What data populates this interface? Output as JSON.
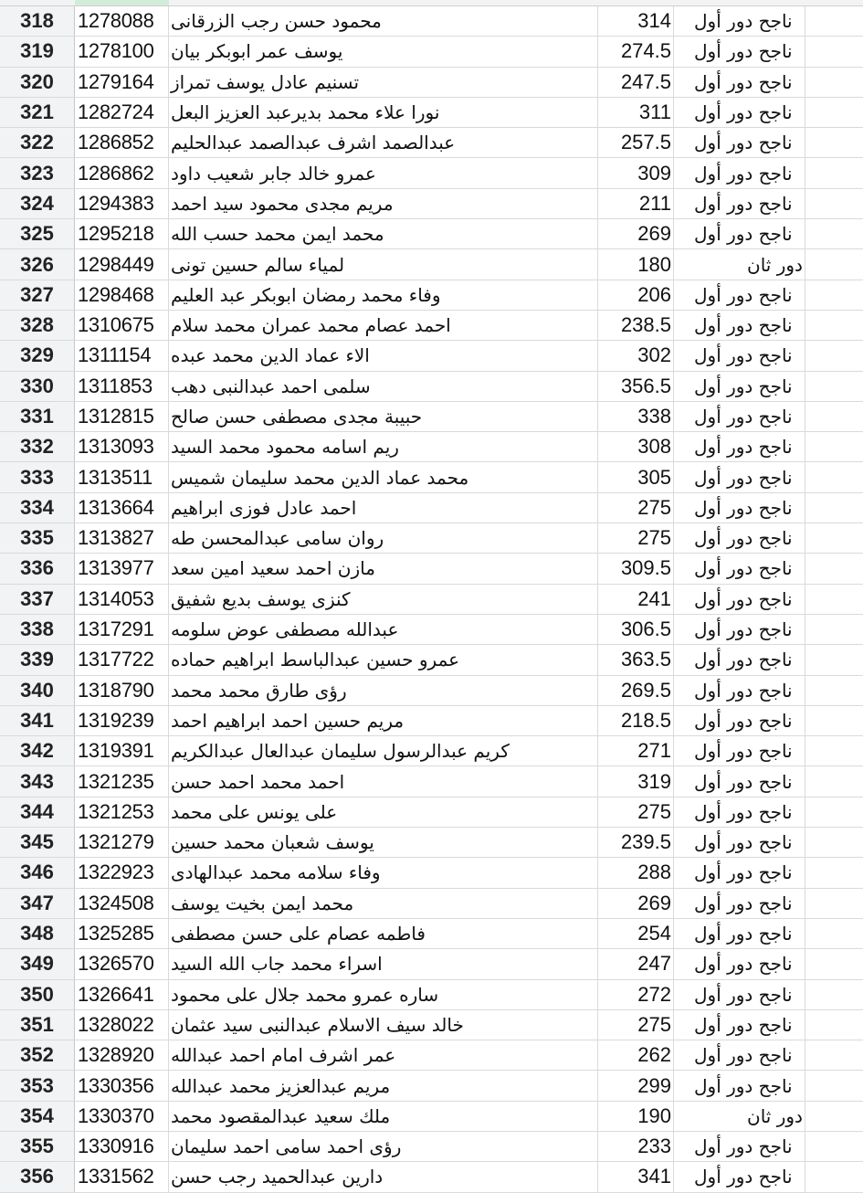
{
  "status_labels": {
    "pass_first": "ناجح دور أول",
    "second_round": "دور ثان"
  },
  "rows": [
    {
      "n": "318",
      "id": "1278088",
      "name": "محمود حسن رجب الزرقانى",
      "grade": "314",
      "status": "ناجح دور أول"
    },
    {
      "n": "319",
      "id": "1278100",
      "name": "يوسف عمر ابوبكر بيان",
      "grade": "274.5",
      "status": "ناجح دور أول"
    },
    {
      "n": "320",
      "id": "1279164",
      "name": "تسنيم عادل يوسف تمراز",
      "grade": "247.5",
      "status": "ناجح دور أول"
    },
    {
      "n": "321",
      "id": "1282724",
      "name": "نورا علاء محمد بديرعبد العزيز البعل",
      "grade": "311",
      "status": "ناجح دور أول"
    },
    {
      "n": "322",
      "id": "1286852",
      "name": "عبدالصمد اشرف عبدالصمد عبدالحليم",
      "grade": "257.5",
      "status": "ناجح دور أول"
    },
    {
      "n": "323",
      "id": "1286862",
      "name": "عمرو خالد جابر شعيب داود",
      "grade": "309",
      "status": "ناجح دور أول"
    },
    {
      "n": "324",
      "id": "1294383",
      "name": "مريم مجدى محمود سيد احمد",
      "grade": "211",
      "status": "ناجح دور أول"
    },
    {
      "n": "325",
      "id": "1295218",
      "name": "محمد ايمن محمد حسب الله",
      "grade": "269",
      "status": "ناجح دور أول"
    },
    {
      "n": "326",
      "id": "1298449",
      "name": "لمياء سالم حسين تونى",
      "grade": "180",
      "status": "دور ثان"
    },
    {
      "n": "327",
      "id": "1298468",
      "name": "وفاء محمد رمضان ابوبكر عبد العليم",
      "grade": "206",
      "status": "ناجح دور أول"
    },
    {
      "n": "328",
      "id": "1310675",
      "name": "احمد عصام محمد عمران محمد سلام",
      "grade": "238.5",
      "status": "ناجح دور أول"
    },
    {
      "n": "329",
      "id": "1311154",
      "name": "الاء عماد الدين محمد عبده",
      "grade": "302",
      "status": "ناجح دور أول"
    },
    {
      "n": "330",
      "id": "1311853",
      "name": "سلمى احمد عبدالنبى دهب",
      "grade": "356.5",
      "status": "ناجح دور أول"
    },
    {
      "n": "331",
      "id": "1312815",
      "name": "حبيبة مجدى مصطفى حسن صالح",
      "grade": "338",
      "status": "ناجح دور أول"
    },
    {
      "n": "332",
      "id": "1313093",
      "name": "ريم اسامه محمود محمد السيد",
      "grade": "308",
      "status": "ناجح دور أول"
    },
    {
      "n": "333",
      "id": "1313511",
      "name": "محمد عماد الدين محمد سليمان شميس",
      "grade": "305",
      "status": "ناجح دور أول"
    },
    {
      "n": "334",
      "id": "1313664",
      "name": "احمد عادل فوزى ابراهيم",
      "grade": "275",
      "status": "ناجح دور أول"
    },
    {
      "n": "335",
      "id": "1313827",
      "name": "روان سامى عبدالمحسن طه",
      "grade": "275",
      "status": "ناجح دور أول"
    },
    {
      "n": "336",
      "id": "1313977",
      "name": "مازن احمد سعيد امين سعد",
      "grade": "309.5",
      "status": "ناجح دور أول"
    },
    {
      "n": "337",
      "id": "1314053",
      "name": "كنزى يوسف بديع شفيق",
      "grade": "241",
      "status": "ناجح دور أول"
    },
    {
      "n": "338",
      "id": "1317291",
      "name": "عبدالله مصطفى عوض سلومه",
      "grade": "306.5",
      "status": "ناجح دور أول"
    },
    {
      "n": "339",
      "id": "1317722",
      "name": "عمرو حسين عبدالباسط ابراهيم حماده",
      "grade": "363.5",
      "status": "ناجح دور أول"
    },
    {
      "n": "340",
      "id": "1318790",
      "name": "رؤى طارق محمد محمد",
      "grade": "269.5",
      "status": "ناجح دور أول"
    },
    {
      "n": "341",
      "id": "1319239",
      "name": "مريم حسين احمد ابراهيم احمد",
      "grade": "218.5",
      "status": "ناجح دور أول"
    },
    {
      "n": "342",
      "id": "1319391",
      "name": "كريم عبدالرسول سليمان عبدالعال عبدالكريم",
      "grade": "271",
      "status": "ناجح دور أول"
    },
    {
      "n": "343",
      "id": "1321235",
      "name": "احمد محمد احمد حسن",
      "grade": "319",
      "status": "ناجح دور أول"
    },
    {
      "n": "344",
      "id": "1321253",
      "name": "على يونس على محمد",
      "grade": "275",
      "status": "ناجح دور أول"
    },
    {
      "n": "345",
      "id": "1321279",
      "name": "يوسف شعبان محمد حسين",
      "grade": "239.5",
      "status": "ناجح دور أول"
    },
    {
      "n": "346",
      "id": "1322923",
      "name": "وفاء سلامه محمد عبدالهادى",
      "grade": "288",
      "status": "ناجح دور أول"
    },
    {
      "n": "347",
      "id": "1324508",
      "name": "محمد ايمن بخيت يوسف",
      "grade": "269",
      "status": "ناجح دور أول"
    },
    {
      "n": "348",
      "id": "1325285",
      "name": "فاطمه عصام على حسن مصطفى",
      "grade": "254",
      "status": "ناجح دور أول"
    },
    {
      "n": "349",
      "id": "1326570",
      "name": "اسراء محمد جاب الله السيد",
      "grade": "247",
      "status": "ناجح دور أول"
    },
    {
      "n": "350",
      "id": "1326641",
      "name": "ساره عمرو محمد جلال على محمود",
      "grade": "272",
      "status": "ناجح دور أول"
    },
    {
      "n": "351",
      "id": "1328022",
      "name": "خالد سيف الاسلام عبدالنبى سيد عثمان",
      "grade": "275",
      "status": "ناجح دور أول"
    },
    {
      "n": "352",
      "id": "1328920",
      "name": "عمر اشرف امام احمد عبدالله",
      "grade": "262",
      "status": "ناجح دور أول"
    },
    {
      "n": "353",
      "id": "1330356",
      "name": "مريم عبدالعزيز محمد عبدالله",
      "grade": "299",
      "status": "ناجح دور أول"
    },
    {
      "n": "354",
      "id": "1330370",
      "name": "ملك سعيد عبدالمقصود محمد",
      "grade": "190",
      "status": "دور ثان"
    },
    {
      "n": "355",
      "id": "1330916",
      "name": "رؤى احمد سامى احمد سليمان",
      "grade": "233",
      "status": "ناجح دور أول"
    },
    {
      "n": "356",
      "id": "1331562",
      "name": "دارين عبدالحميد رجب حسن",
      "grade": "341",
      "status": "ناجح دور أول"
    }
  ]
}
